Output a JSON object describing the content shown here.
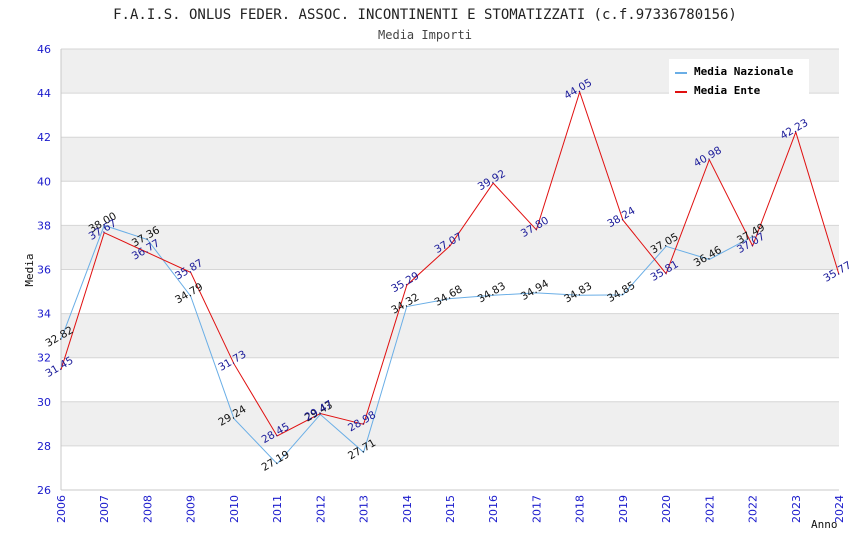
{
  "chart_data": {
    "type": "line",
    "title": "F.A.I.S. ONLUS FEDER. ASSOC. INCONTINENTI E STOMATIZZATI (c.f.97336780156)",
    "subtitle": "Media Importi",
    "xlabel": "Anno",
    "ylabel": "Media",
    "ylim": [
      26,
      46
    ],
    "yticks": [
      "26",
      "28",
      "30",
      "32",
      "34",
      "36",
      "38",
      "40",
      "42",
      "44",
      "46"
    ],
    "categories": [
      "2006",
      "2007",
      "2008",
      "2009",
      "2010",
      "2011",
      "2012",
      "2013",
      "2014",
      "2015",
      "2016",
      "2017",
      "2018",
      "2019",
      "2020",
      "2021",
      "2022",
      "2023",
      "2024"
    ],
    "grid": true,
    "legend_position": "top-right",
    "series": [
      {
        "name": "Media Nazionale",
        "color": "#6aaee6",
        "values": [
          32.82,
          38.0,
          37.36,
          34.79,
          29.24,
          27.19,
          29.43,
          27.71,
          34.32,
          34.68,
          34.83,
          34.94,
          34.83,
          34.85,
          37.05,
          36.46,
          37.49,
          null,
          null
        ],
        "labels": [
          "32.82",
          "38.00",
          "37.36",
          "34.79",
          "29.24",
          "27.19",
          "29.43",
          "27.71",
          "34.32",
          "34.68",
          "34.83",
          "34.94",
          "34.83",
          "34.85",
          "37.05",
          "36.46",
          "37.49",
          "",
          ""
        ]
      },
      {
        "name": "Media Ente",
        "color": "#e01010",
        "values": [
          31.45,
          37.67,
          36.77,
          35.87,
          31.73,
          28.45,
          29.47,
          28.98,
          35.29,
          37.07,
          39.92,
          37.8,
          44.05,
          38.24,
          35.81,
          40.98,
          37.07,
          42.23,
          35.77
        ],
        "labels": [
          "31.45",
          "37.67",
          "36.77",
          "35.87",
          "31.73",
          "28.45",
          "29.47",
          "28.98",
          "35.29",
          "37.07",
          "39.92",
          "37.80",
          "44.05",
          "38.24",
          "35.81",
          "40.98",
          "37.07",
          "42.23",
          "35.77"
        ]
      }
    ]
  }
}
